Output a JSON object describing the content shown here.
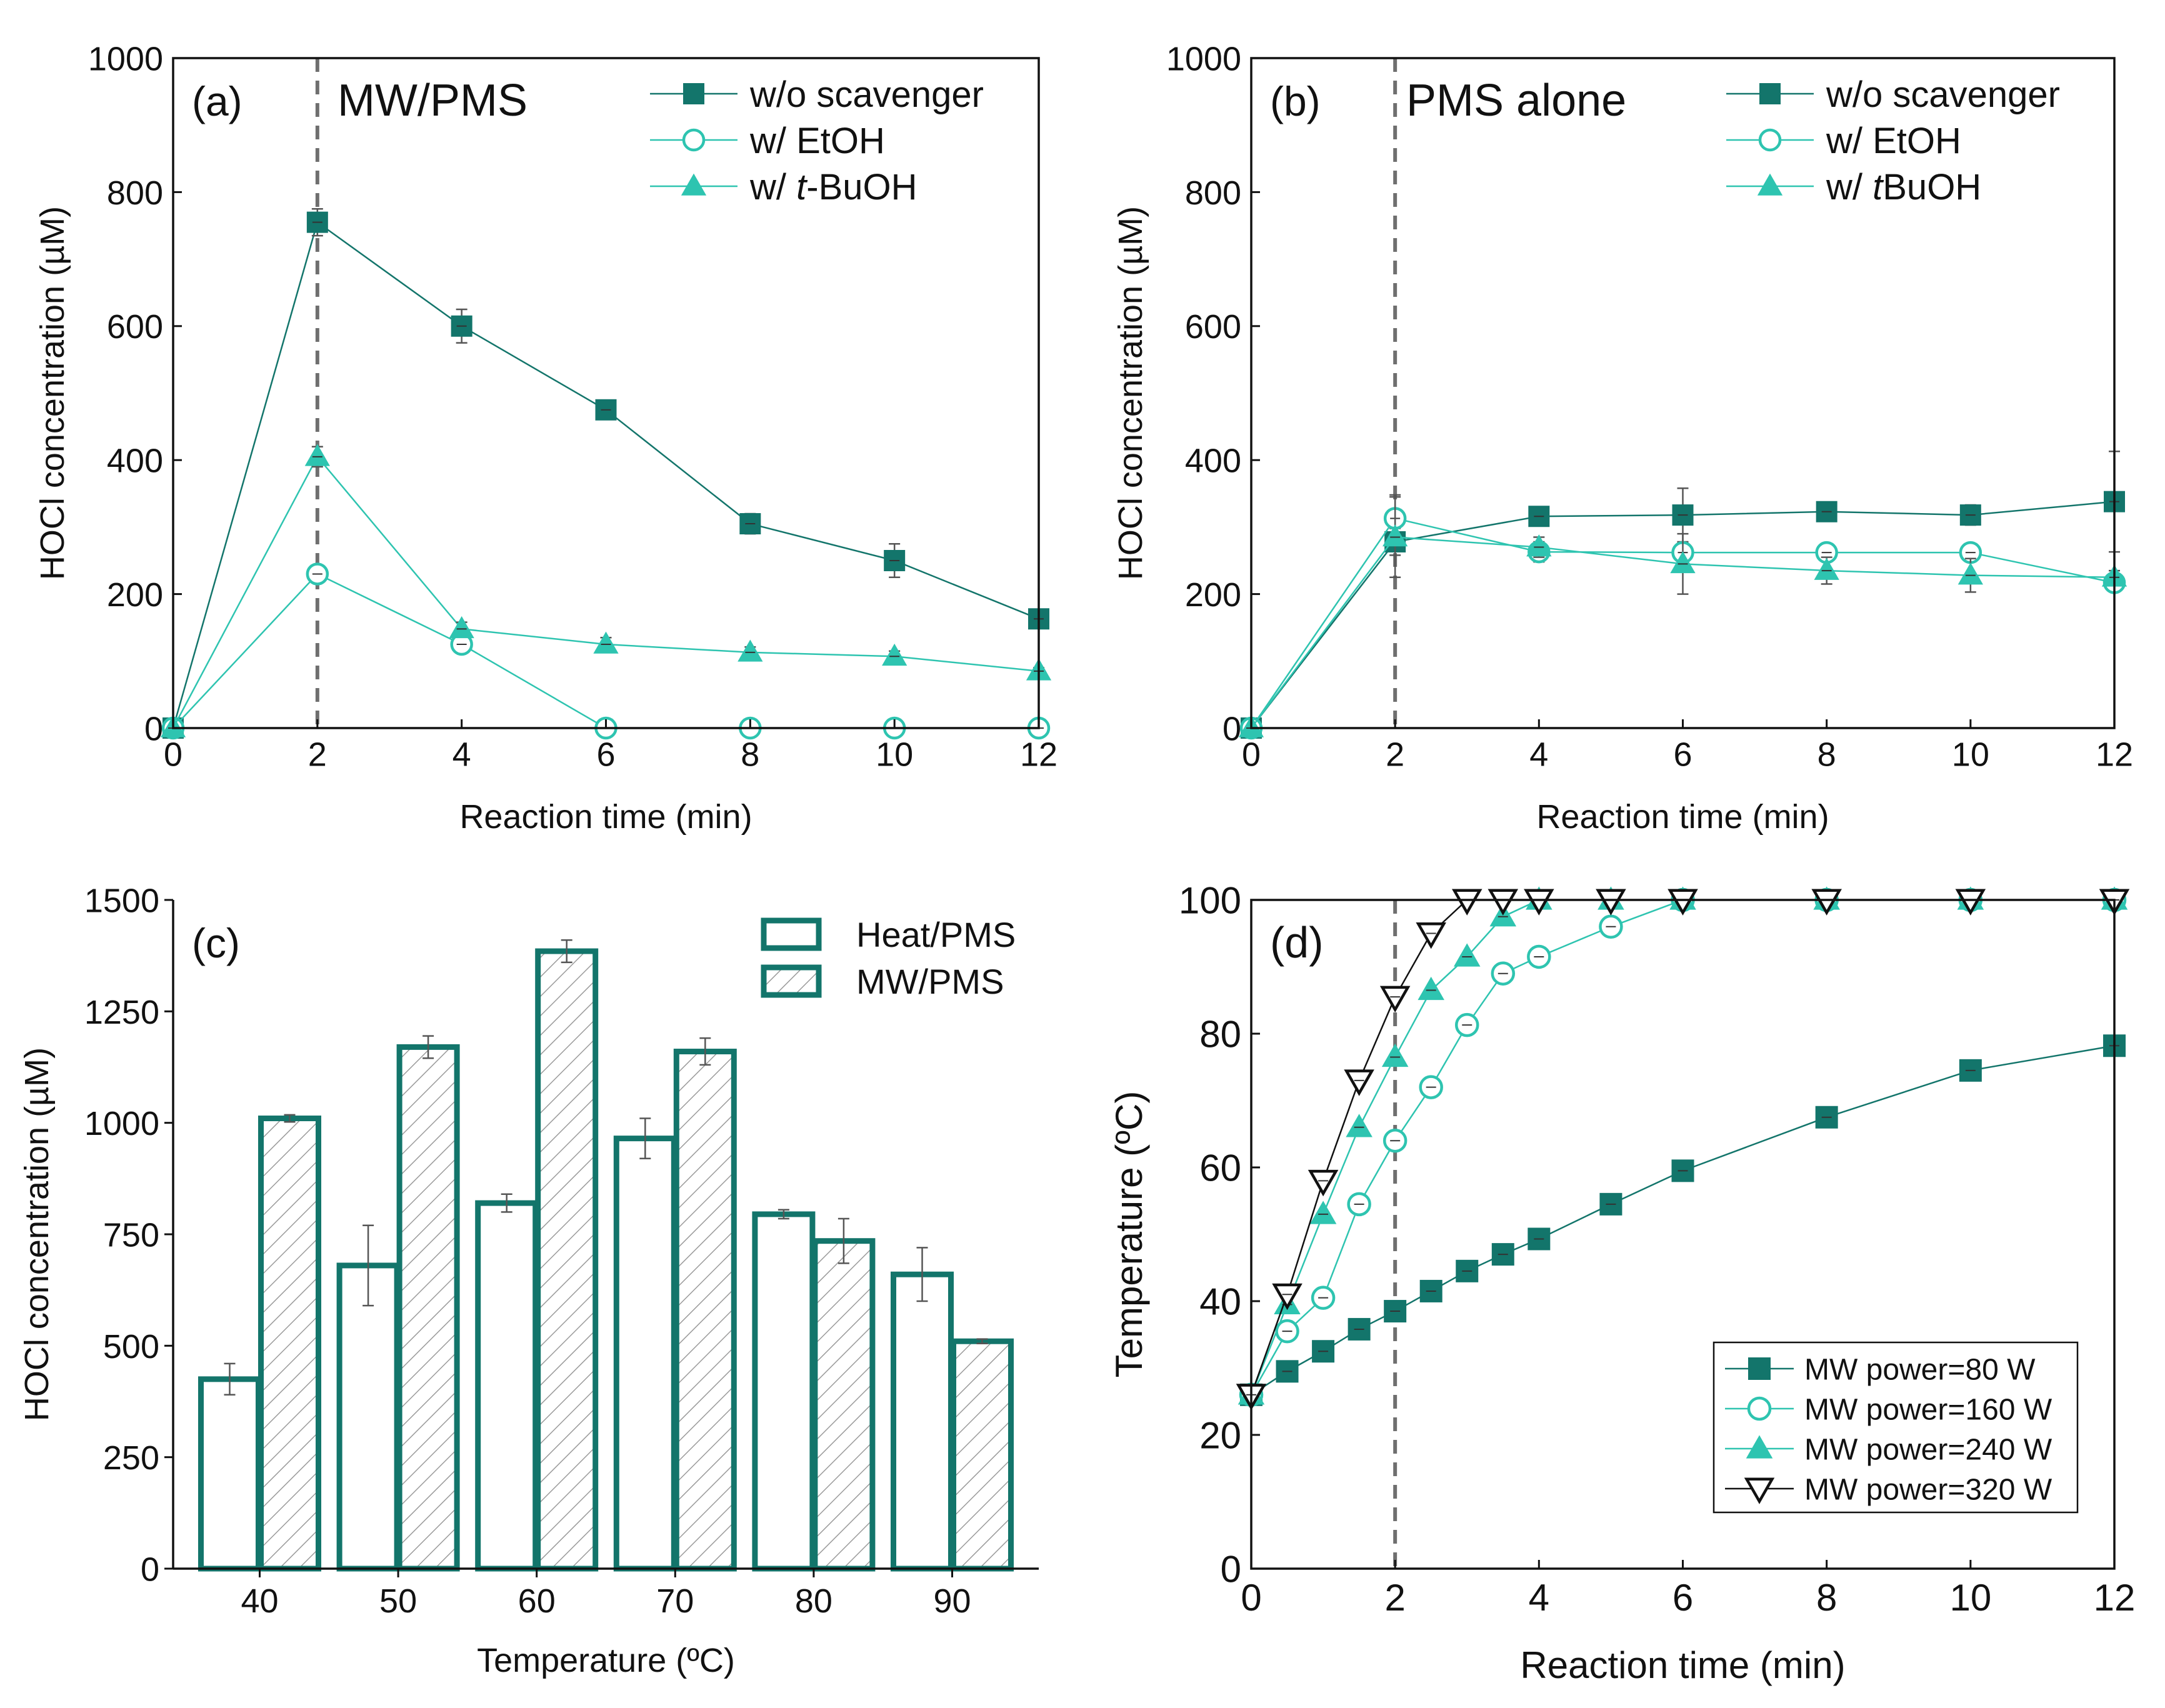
{
  "chart_data": [
    {
      "type": "line",
      "panel": "(a)",
      "annotation": "MW/PMS",
      "xlabel": "Reaction time (min)",
      "ylabel": "HOCl concentration (µM)",
      "xlim": [
        0,
        12
      ],
      "ylim": [
        0,
        1000
      ],
      "xticks": [
        0,
        2,
        4,
        6,
        8,
        10,
        12
      ],
      "yticks": [
        0,
        200,
        400,
        600,
        800,
        1000
      ],
      "vline": 2,
      "legend_position": "top-right",
      "x": [
        0,
        2,
        4,
        6,
        8,
        10,
        12
      ],
      "series": [
        {
          "name": "w/o scavenger",
          "marker": "square",
          "values": [
            0,
            755,
            600,
            475,
            305,
            250,
            163
          ],
          "errors": [
            0,
            20,
            25,
            10,
            15,
            25,
            10
          ]
        },
        {
          "name": "w/ EtOH",
          "legend_parts": [
            "w/ EtOH"
          ],
          "marker": "circle",
          "values": [
            0,
            230,
            125,
            0,
            0,
            0,
            0
          ],
          "errors": [
            0,
            10,
            10,
            0,
            0,
            0,
            0
          ]
        },
        {
          "name": "w/ t-BuOH",
          "legend_parts": [
            "w/ ",
            "t",
            "-BuOH"
          ],
          "marker": "triangle",
          "values": [
            0,
            405,
            148,
            125,
            113,
            107,
            85
          ],
          "errors": [
            0,
            15,
            10,
            10,
            8,
            8,
            5
          ]
        }
      ]
    },
    {
      "type": "line",
      "panel": "(b)",
      "annotation": "PMS alone",
      "xlabel": "Reaction time (min)",
      "ylabel": "HOCl concentration (µM)",
      "xlim": [
        0,
        12
      ],
      "ylim": [
        0,
        1000
      ],
      "xticks": [
        0,
        2,
        4,
        6,
        8,
        10,
        12
      ],
      "yticks": [
        0,
        200,
        400,
        600,
        800,
        1000
      ],
      "vline": 2,
      "legend_position": "top-right",
      "x": [
        0,
        2,
        4,
        6,
        8,
        10,
        12
      ],
      "series": [
        {
          "name": "w/o scavenger",
          "marker": "square",
          "values": [
            0,
            278,
            316,
            318,
            323,
            318,
            338
          ],
          "errors": [
            0,
            20,
            12,
            40,
            12,
            15,
            75
          ]
        },
        {
          "name": "w/ EtOH",
          "legend_parts": [
            "w/ EtOH"
          ],
          "marker": "circle",
          "values": [
            0,
            313,
            263,
            262,
            262,
            262,
            217
          ],
          "errors": [
            0,
            35,
            15,
            15,
            12,
            12,
            10
          ]
        },
        {
          "name": "w/ tBuOH",
          "legend_parts": [
            "w/ ",
            "t",
            "BuOH"
          ],
          "marker": "triangle",
          "values": [
            0,
            285,
            270,
            245,
            235,
            228,
            225
          ],
          "errors": [
            0,
            60,
            15,
            45,
            20,
            25,
            10
          ]
        }
      ]
    },
    {
      "type": "bar",
      "panel": "(c)",
      "xlabel": "Temperature (ºC)",
      "ylabel": "HOCl concentration (µM)",
      "ylim": [
        0,
        1500
      ],
      "yticks": [
        0,
        250,
        500,
        750,
        1000,
        1250,
        1500
      ],
      "categories": [
        "40",
        "50",
        "60",
        "70",
        "80",
        "90"
      ],
      "legend_position": "top-right",
      "series": [
        {
          "name": "Heat/PMS",
          "fill": "none",
          "values": [
            425,
            680,
            820,
            965,
            795,
            660
          ],
          "errors": [
            35,
            90,
            20,
            45,
            10,
            60
          ]
        },
        {
          "name": "MW/PMS",
          "fill": "hatched",
          "values": [
            1010,
            1170,
            1385,
            1160,
            735,
            510
          ],
          "errors": [
            8,
            25,
            25,
            30,
            50,
            5
          ]
        }
      ]
    },
    {
      "type": "line",
      "panel": "(d)",
      "xlabel": "Reaction time (min)",
      "ylabel": "Temperature (ºC)",
      "xlim": [
        0,
        12
      ],
      "ylim": [
        0,
        100
      ],
      "xticks": [
        0,
        2,
        4,
        6,
        8,
        10,
        12
      ],
      "yticks": [
        0,
        20,
        40,
        60,
        80,
        100
      ],
      "vline": 2,
      "legend_position": "bottom-right",
      "series": [
        {
          "name": "MW power=80 W",
          "marker": "square",
          "x": [
            0,
            0.5,
            1,
            1.5,
            2,
            2.5,
            3,
            3.5,
            4,
            5,
            6,
            8,
            10,
            12
          ],
          "values": [
            26,
            29.5,
            32.5,
            35.8,
            38.5,
            41.5,
            44.5,
            47,
            49.3,
            54.5,
            59.5,
            67.5,
            74.5,
            78.2
          ]
        },
        {
          "name": "MW power=160 W",
          "marker": "circle",
          "x": [
            0,
            0.5,
            1,
            1.5,
            2,
            2.5,
            3,
            3.5,
            4,
            5,
            6,
            8,
            10,
            12
          ],
          "values": [
            26,
            35.5,
            40.5,
            54.5,
            64,
            72,
            81.3,
            89,
            91.5,
            96,
            100,
            100,
            100,
            100
          ]
        },
        {
          "name": "MW power=240 W",
          "marker": "triangle",
          "x": [
            0,
            0.5,
            1,
            1.5,
            2,
            2.5,
            3,
            3.5,
            4,
            5,
            6,
            8,
            10,
            12
          ],
          "values": [
            26,
            39.5,
            53,
            66,
            76.5,
            86.5,
            91.5,
            97.5,
            100,
            100,
            100,
            100,
            100,
            100
          ]
        },
        {
          "name": "MW power=320 W",
          "marker": "triangle-down",
          "x": [
            0,
            0.5,
            1,
            1.5,
            2,
            2.5,
            3,
            3.5,
            4,
            5,
            6,
            8,
            10,
            12
          ],
          "values": [
            26,
            41,
            58,
            73,
            85.5,
            95,
            100,
            100,
            100,
            100,
            100,
            100,
            100,
            100
          ]
        }
      ]
    }
  ],
  "colors": {
    "dark_teal": "#13756b",
    "light_teal": "#2ec4b0",
    "black": "#111111",
    "dashed_line": "#6f6f6f",
    "error_bar": "#555555"
  }
}
